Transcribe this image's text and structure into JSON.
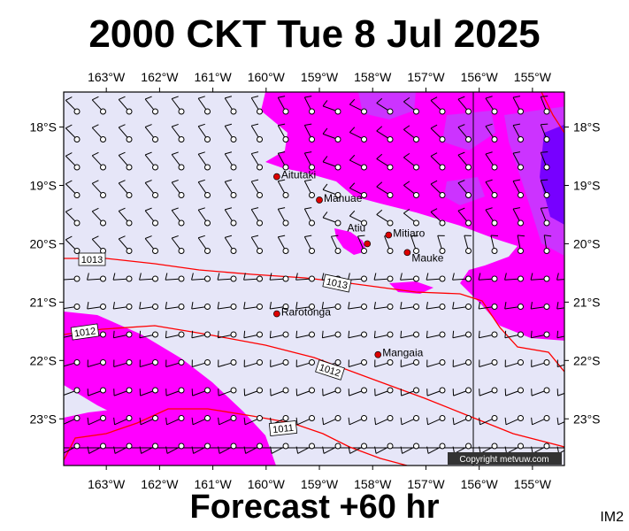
{
  "title": "2000 CKT Tue 8 Jul 2025",
  "forecast": "Forecast +60 hr",
  "corner_label": "IM2",
  "copyright": "Copyright metvuw.com",
  "map": {
    "lon_range": [
      -163.8,
      -154.4
    ],
    "lat_range": [
      -17.4,
      -23.8
    ],
    "lon_ticks": [
      "163°W",
      "162°W",
      "161°W",
      "160°W",
      "159°W",
      "158°W",
      "157°W",
      "156°W",
      "155°W"
    ],
    "lat_ticks": [
      "18°S",
      "19°S",
      "20°S",
      "21°S",
      "22°S",
      "23°S"
    ],
    "places": [
      {
        "name": "Aitutaki",
        "lon": -159.8,
        "lat": -18.85
      },
      {
        "name": "Manuae",
        "lon": -159.0,
        "lat": -19.25
      },
      {
        "name": "Atiu",
        "lon": -158.1,
        "lat": -20.0
      },
      {
        "name": "Mitiaro",
        "lon": -157.7,
        "lat": -19.85
      },
      {
        "name": "Mauke",
        "lon": -157.35,
        "lat": -20.15
      },
      {
        "name": "Rarotonga",
        "lon": -159.8,
        "lat": -21.2
      },
      {
        "name": "Mangaia",
        "lon": -157.9,
        "lat": -21.9
      }
    ],
    "isobars": [
      {
        "label": "1013"
      },
      {
        "label": "1013"
      },
      {
        "label": "1012"
      },
      {
        "label": "1012"
      },
      {
        "label": "1011"
      }
    ],
    "colors": {
      "background": "#e6e6f8",
      "rain_light": "#ff00ff",
      "rain_mid": "#cc33ff",
      "rain_heavy": "#7700ff",
      "isobar": "#ff0000",
      "place_marker": "#dd0000"
    }
  }
}
